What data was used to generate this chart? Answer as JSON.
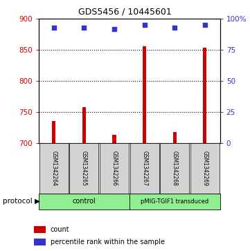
{
  "title": "GDS5456 / 10445601",
  "samples": [
    "GSM1342264",
    "GSM1342265",
    "GSM1342266",
    "GSM1342267",
    "GSM1342268",
    "GSM1342269"
  ],
  "counts": [
    736,
    758,
    713,
    856,
    718,
    854
  ],
  "percentile_ranks": [
    93,
    93,
    92,
    95,
    93,
    95
  ],
  "ylim_left": [
    700,
    900
  ],
  "ylim_right": [
    0,
    100
  ],
  "yticks_left": [
    700,
    750,
    800,
    850,
    900
  ],
  "yticks_right": [
    0,
    25,
    50,
    75,
    100
  ],
  "ytick_labels_right": [
    "0",
    "25",
    "50",
    "75",
    "100%"
  ],
  "bar_color": "#cc0000",
  "dot_color": "#3333cc",
  "grid_lines": [
    750,
    800,
    850
  ],
  "protocol_groups": [
    {
      "label": "control",
      "start": 0,
      "end": 2,
      "color": "#90ee90"
    },
    {
      "label": "pMIG-TGIF1 transduced",
      "start": 3,
      "end": 5,
      "color": "#90ee90"
    }
  ],
  "protocol_label": "protocol",
  "legend_items": [
    {
      "color": "#cc0000",
      "label": "count"
    },
    {
      "color": "#3333cc",
      "label": "percentile rank within the sample"
    }
  ],
  "left_color": "#cc0000",
  "right_color": "#3333cc",
  "background_plot": "#ffffff",
  "background_label": "#d3d3d3",
  "bar_width": 0.12,
  "dot_size": 18,
  "title_fontsize": 9,
  "tick_fontsize": 7.5,
  "sample_fontsize": 5.5,
  "legend_fontsize": 7,
  "protocol_fontsize": 7
}
